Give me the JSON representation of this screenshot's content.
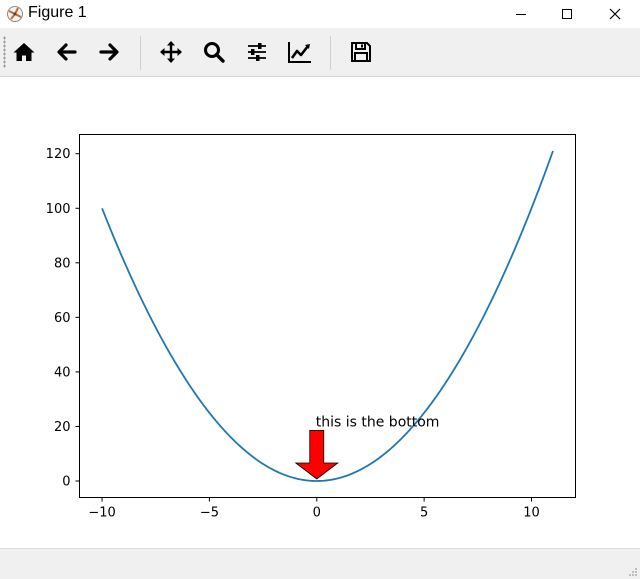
{
  "window": {
    "title": "Figure 1",
    "icon": "matplotlib-icon",
    "controls": [
      "minimize-icon",
      "maximize-icon",
      "close-icon"
    ]
  },
  "toolbar": {
    "buttons": [
      {
        "name": "home-button",
        "icon": "home-icon"
      },
      {
        "name": "back-button",
        "icon": "arrow-left-icon"
      },
      {
        "name": "forward-button",
        "icon": "arrow-right-icon"
      },
      {
        "name": "pan-button",
        "icon": "move-icon"
      },
      {
        "name": "zoom-button",
        "icon": "magnifier-icon"
      },
      {
        "name": "subplots-button",
        "icon": "sliders-icon"
      },
      {
        "name": "edit-axes-button",
        "icon": "chart-line-icon"
      },
      {
        "name": "save-button",
        "icon": "save-icon"
      }
    ]
  },
  "chart_data": {
    "type": "line",
    "title": "",
    "xlabel": "",
    "ylabel": "",
    "xlim": [
      -11.05,
      12.05
    ],
    "ylim": [
      -6.05,
      127.05
    ],
    "xticks": [
      -10,
      -5,
      0,
      5,
      10
    ],
    "xtick_labels": [
      "−10",
      "−5",
      "0",
      "5",
      "10"
    ],
    "yticks": [
      0,
      20,
      40,
      60,
      80,
      100,
      120
    ],
    "ytick_labels": [
      "0",
      "20",
      "40",
      "60",
      "80",
      "100",
      "120"
    ],
    "grid": false,
    "legend": "none",
    "series": [
      {
        "color": "#1f77b4",
        "x": [
          -10,
          -9,
          -8,
          -7,
          -6,
          -5,
          -4,
          -3,
          -2,
          -1,
          0,
          1,
          2,
          3,
          4,
          5,
          6,
          7,
          8,
          9,
          10,
          11
        ],
        "y": [
          100,
          81,
          64,
          49,
          36,
          25,
          16,
          9,
          4,
          1,
          0,
          1,
          4,
          9,
          16,
          25,
          36,
          49,
          64,
          81,
          100,
          121
        ]
      }
    ],
    "annotation": {
      "text": "this is the bottom",
      "xy": [
        0,
        0
      ],
      "xytext": [
        0,
        20
      ],
      "arrow_color": "#ff0000",
      "arrow_edge_color": "#000000"
    }
  }
}
